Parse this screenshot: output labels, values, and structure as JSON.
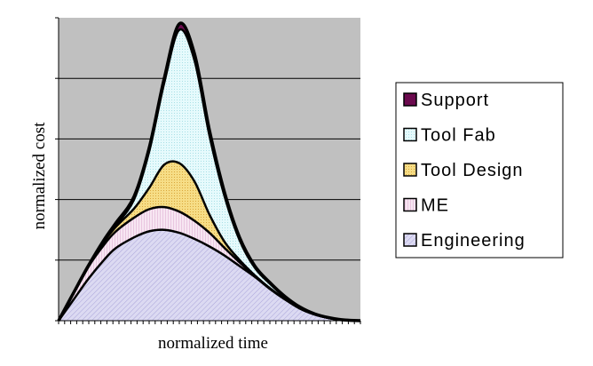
{
  "chart_data": {
    "type": "area",
    "stacked": true,
    "xlabel": "normalized time",
    "ylabel": "normalized cost",
    "xlim": [
      0,
      100
    ],
    "ylim": [
      0,
      100
    ],
    "grid": "horizontal",
    "legend_position": "right",
    "x": [
      0,
      5,
      10,
      15,
      19,
      25,
      30,
      35,
      40,
      45,
      50,
      55,
      60,
      65,
      70,
      75,
      80,
      85,
      90,
      95,
      100
    ],
    "series": [
      {
        "name": "Engineering",
        "color": "#d6d4ee",
        "values": [
          0,
          7,
          14,
          20,
          24,
          27.5,
          29.5,
          30,
          29,
          27,
          24.5,
          21.5,
          18,
          14.5,
          10.5,
          7,
          4,
          2,
          0.8,
          0.2,
          0
        ]
      },
      {
        "name": "ME",
        "color": "#f3dcee",
        "values": [
          0,
          2,
          4,
          5,
          5.5,
          6.5,
          7.3,
          7.5,
          7,
          6,
          4.5,
          2.5,
          1.2,
          0.3,
          0.2,
          0.1,
          0,
          0,
          0,
          0,
          0
        ]
      },
      {
        "name": "Tool Design",
        "color": "#f4d77a",
        "values": [
          0,
          0,
          0,
          1,
          1.5,
          3,
          7,
          14,
          16,
          13,
          6,
          2,
          0.8,
          0.2,
          0,
          0,
          0,
          0,
          0,
          0,
          0
        ]
      },
      {
        "name": "Tool Fab",
        "color": "#dff8fb",
        "values": [
          0,
          0,
          0,
          0,
          0.5,
          3,
          12,
          27,
          44,
          40,
          26,
          15,
          6.5,
          2.5,
          1.5,
          0.6,
          0.3,
          0.1,
          0,
          0,
          0
        ]
      },
      {
        "name": "Support",
        "color": "#6b0a4e",
        "values": [
          0,
          0.3,
          0.4,
          0.6,
          0.8,
          1,
          1.2,
          1.5,
          2,
          2.2,
          1.8,
          1.3,
          0.9,
          0.6,
          0.4,
          0.3,
          0.2,
          0.1,
          0.1,
          0,
          0
        ]
      }
    ],
    "legend_order": [
      "Support",
      "Tool Fab",
      "Tool Design",
      "ME",
      "Engineering"
    ]
  }
}
